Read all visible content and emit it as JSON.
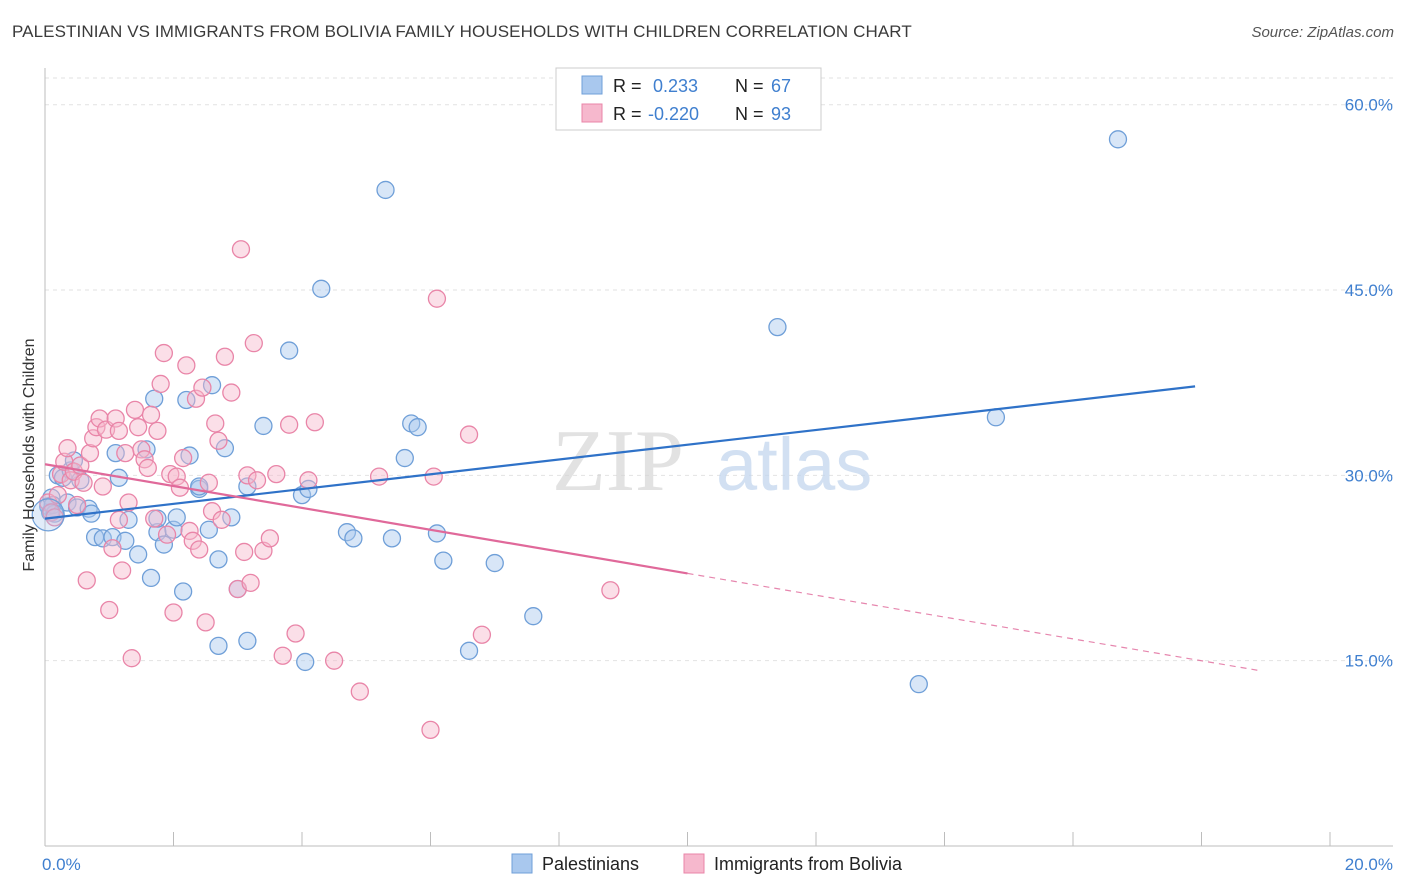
{
  "title": "PALESTINIAN VS IMMIGRANTS FROM BOLIVIA FAMILY HOUSEHOLDS WITH CHILDREN CORRELATION CHART",
  "source": "Source: ZipAtlas.com",
  "watermark": {
    "zip": "ZIP",
    "atlas": "atlas"
  },
  "colors": {
    "blue_fill": "#a9c8ee",
    "blue_stroke": "#6f9fd8",
    "blue_line": "#2f72c8",
    "pink_fill": "#f6b8cd",
    "pink_stroke": "#e985a8",
    "pink_line": "#e0699a",
    "tick_text": "#3f7fcf",
    "grid": "#e2e2e2"
  },
  "stats_box": {
    "rows": [
      {
        "r_label": "R =",
        "r_value": " 0.233",
        "n_label": "N =",
        "n_value": "67"
      },
      {
        "r_label": "R =",
        "r_value": "-0.220",
        "n_label": "N =",
        "n_value": "93"
      }
    ]
  },
  "chart_data": {
    "type": "scatter",
    "xlabel": "",
    "ylabel": "Family Households with Children",
    "xlim": [
      0,
      20
    ],
    "ylim": [
      0,
      62
    ],
    "x_tick_labels": [
      "0.0%",
      "20.0%"
    ],
    "y_ticks": [
      15,
      30,
      45,
      60
    ],
    "y_tick_labels": [
      "15.0%",
      "30.0%",
      "45.0%",
      "60.0%"
    ],
    "series": [
      {
        "name": "Palestinians",
        "color": "blue",
        "trend": {
          "x0": 0,
          "y0": 26.5,
          "x1": 17.9,
          "y1": 37.2,
          "dash_from": null
        },
        "points": [
          [
            0.05,
            27.5
          ],
          [
            0.08,
            27.0
          ],
          [
            0.1,
            28.2
          ],
          [
            0.12,
            27.6
          ],
          [
            0.15,
            26.9
          ],
          [
            0.2,
            30.0
          ],
          [
            0.28,
            29.8
          ],
          [
            0.35,
            27.8
          ],
          [
            0.4,
            30.4
          ],
          [
            0.45,
            31.2
          ],
          [
            0.5,
            27.4
          ],
          [
            0.55,
            29.6
          ],
          [
            0.68,
            27.3
          ],
          [
            0.72,
            26.9
          ],
          [
            0.78,
            25.0
          ],
          [
            0.9,
            24.9
          ],
          [
            1.05,
            25.0
          ],
          [
            1.1,
            31.8
          ],
          [
            1.15,
            29.8
          ],
          [
            1.25,
            24.7
          ],
          [
            1.3,
            26.4
          ],
          [
            1.45,
            23.6
          ],
          [
            1.58,
            32.1
          ],
          [
            1.65,
            21.7
          ],
          [
            1.7,
            36.2
          ],
          [
            1.75,
            25.4
          ],
          [
            1.75,
            26.5
          ],
          [
            1.85,
            24.4
          ],
          [
            2.0,
            25.6
          ],
          [
            2.05,
            26.6
          ],
          [
            2.15,
            20.6
          ],
          [
            2.2,
            36.1
          ],
          [
            2.25,
            31.6
          ],
          [
            2.4,
            28.9
          ],
          [
            2.4,
            29.1
          ],
          [
            2.55,
            25.6
          ],
          [
            2.6,
            37.3
          ],
          [
            2.7,
            23.2
          ],
          [
            2.7,
            16.2
          ],
          [
            2.8,
            32.2
          ],
          [
            2.9,
            26.6
          ],
          [
            3.0,
            20.8
          ],
          [
            3.15,
            16.6
          ],
          [
            3.15,
            29.1
          ],
          [
            3.4,
            34.0
          ],
          [
            3.8,
            40.1
          ],
          [
            4.0,
            28.4
          ],
          [
            4.05,
            14.9
          ],
          [
            4.1,
            28.9
          ],
          [
            4.3,
            45.1
          ],
          [
            4.7,
            25.4
          ],
          [
            4.8,
            24.9
          ],
          [
            5.3,
            53.1
          ],
          [
            5.4,
            24.9
          ],
          [
            5.6,
            31.4
          ],
          [
            5.7,
            34.2
          ],
          [
            5.8,
            33.9
          ],
          [
            6.1,
            25.3
          ],
          [
            6.2,
            23.1
          ],
          [
            6.6,
            15.8
          ],
          [
            7.0,
            22.9
          ],
          [
            7.6,
            18.6
          ],
          [
            11.4,
            42.0
          ],
          [
            13.6,
            13.1
          ],
          [
            14.8,
            34.7
          ],
          [
            16.7,
            57.2
          ]
        ]
      },
      {
        "name": "Immigrants from Bolivia",
        "color": "pink",
        "trend": {
          "x0": 0,
          "y0": 30.9,
          "x1": 18.9,
          "y1": 14.2,
          "dash_from": 10.0
        },
        "points": [
          [
            0.05,
            27.8
          ],
          [
            0.1,
            27.0
          ],
          [
            0.15,
            26.6
          ],
          [
            0.2,
            28.4
          ],
          [
            0.25,
            30.1
          ],
          [
            0.3,
            31.1
          ],
          [
            0.35,
            32.2
          ],
          [
            0.4,
            29.6
          ],
          [
            0.45,
            30.3
          ],
          [
            0.5,
            27.6
          ],
          [
            0.55,
            30.8
          ],
          [
            0.6,
            29.4
          ],
          [
            0.65,
            21.5
          ],
          [
            0.7,
            31.8
          ],
          [
            0.75,
            33.0
          ],
          [
            0.8,
            33.9
          ],
          [
            0.85,
            34.6
          ],
          [
            0.9,
            29.1
          ],
          [
            0.95,
            33.7
          ],
          [
            1.0,
            19.1
          ],
          [
            1.05,
            24.1
          ],
          [
            1.1,
            34.6
          ],
          [
            1.15,
            26.4
          ],
          [
            1.15,
            33.6
          ],
          [
            1.2,
            22.3
          ],
          [
            1.25,
            31.8
          ],
          [
            1.3,
            27.8
          ],
          [
            1.35,
            15.2
          ],
          [
            1.4,
            35.3
          ],
          [
            1.45,
            33.9
          ],
          [
            1.5,
            32.1
          ],
          [
            1.55,
            31.3
          ],
          [
            1.6,
            30.6
          ],
          [
            1.65,
            34.9
          ],
          [
            1.7,
            26.5
          ],
          [
            1.75,
            33.6
          ],
          [
            1.8,
            37.4
          ],
          [
            1.85,
            39.9
          ],
          [
            1.9,
            25.2
          ],
          [
            1.95,
            30.1
          ],
          [
            2.0,
            18.9
          ],
          [
            2.05,
            29.9
          ],
          [
            2.1,
            29.0
          ],
          [
            2.15,
            31.4
          ],
          [
            2.2,
            38.9
          ],
          [
            2.25,
            25.5
          ],
          [
            2.3,
            24.7
          ],
          [
            2.35,
            36.2
          ],
          [
            2.4,
            24.0
          ],
          [
            2.45,
            37.1
          ],
          [
            2.5,
            18.1
          ],
          [
            2.55,
            29.4
          ],
          [
            2.6,
            27.1
          ],
          [
            2.65,
            34.2
          ],
          [
            2.7,
            32.8
          ],
          [
            2.75,
            26.4
          ],
          [
            2.8,
            39.6
          ],
          [
            2.9,
            36.7
          ],
          [
            3.0,
            20.8
          ],
          [
            3.05,
            48.3
          ],
          [
            3.1,
            23.8
          ],
          [
            3.15,
            30.0
          ],
          [
            3.2,
            21.3
          ],
          [
            3.25,
            40.7
          ],
          [
            3.3,
            29.6
          ],
          [
            3.4,
            23.9
          ],
          [
            3.5,
            24.9
          ],
          [
            3.6,
            30.1
          ],
          [
            3.7,
            15.4
          ],
          [
            3.8,
            34.1
          ],
          [
            3.9,
            17.2
          ],
          [
            4.1,
            29.6
          ],
          [
            4.2,
            34.3
          ],
          [
            4.5,
            15.0
          ],
          [
            4.9,
            12.5
          ],
          [
            5.2,
            29.9
          ],
          [
            6.0,
            9.4
          ],
          [
            6.05,
            29.9
          ],
          [
            6.1,
            44.3
          ],
          [
            6.6,
            33.3
          ],
          [
            6.8,
            17.1
          ],
          [
            8.8,
            20.7
          ]
        ]
      }
    ],
    "legend": [
      {
        "label": "Palestinians",
        "color": "blue"
      },
      {
        "label": "Immigrants from Bolivia",
        "color": "pink"
      }
    ],
    "legend_position": "bottom-center",
    "grid": true
  }
}
